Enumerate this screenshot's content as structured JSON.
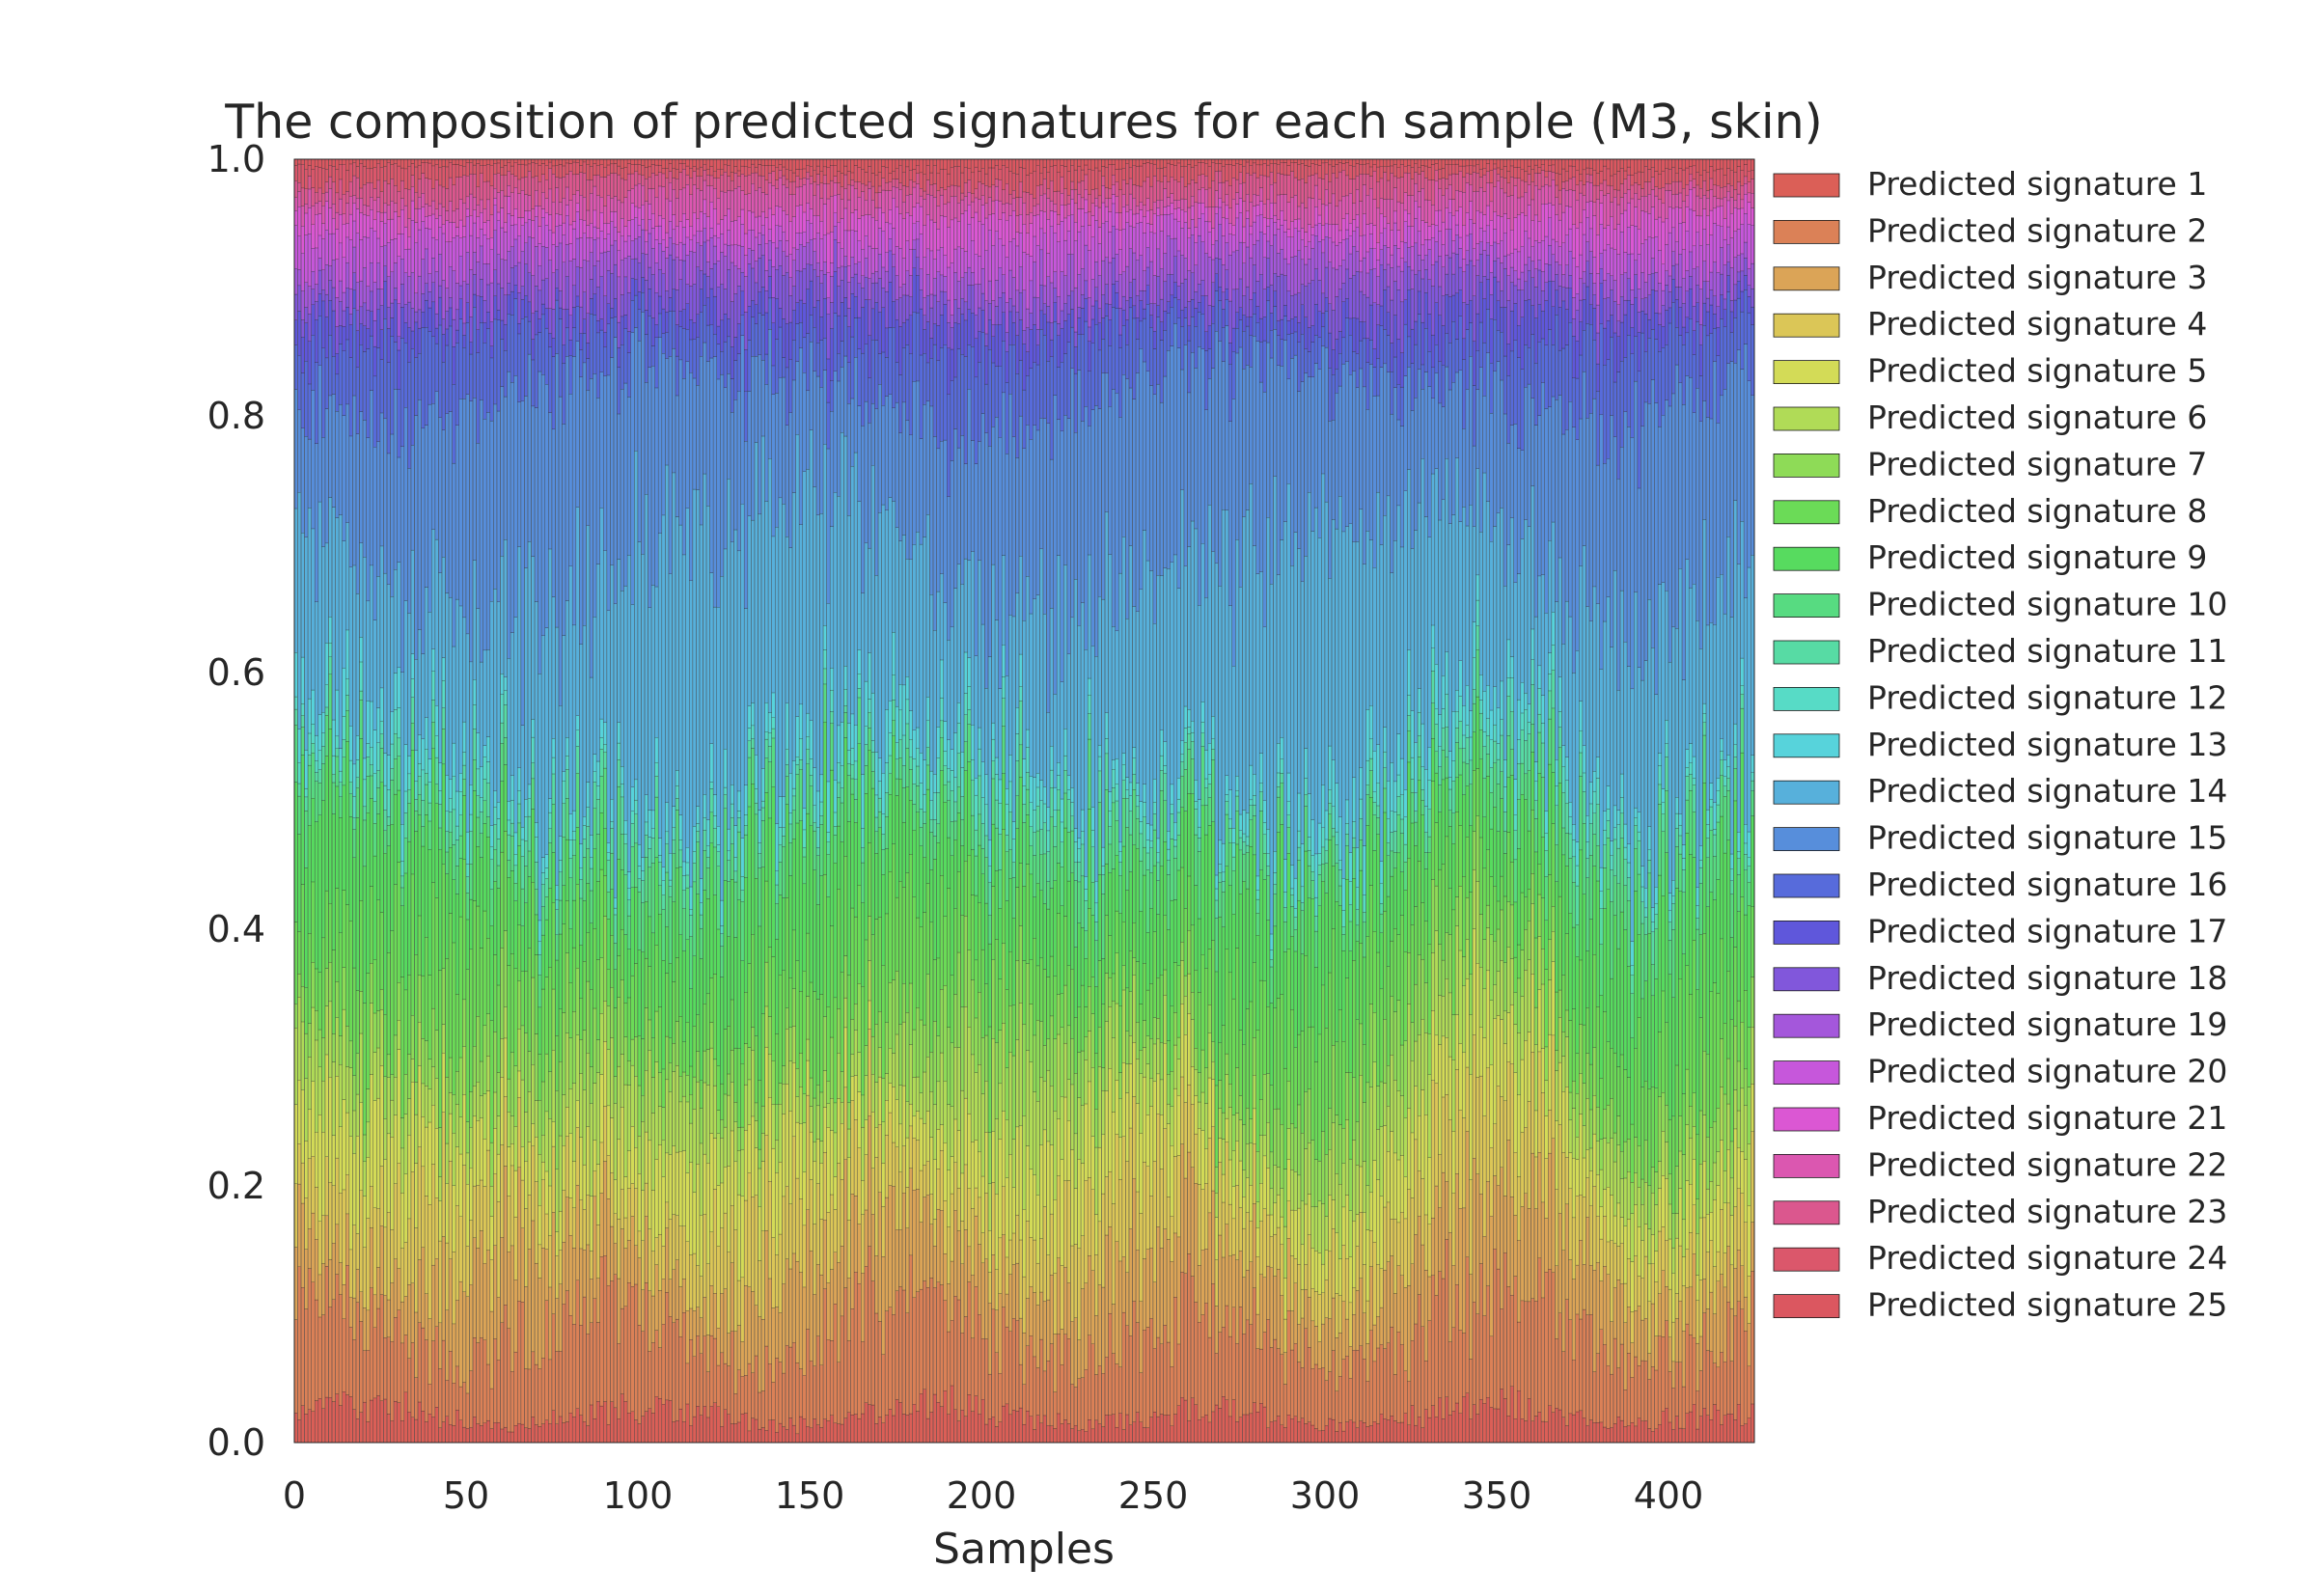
{
  "chart_data": {
    "type": "bar",
    "stacked": true,
    "normalized": true,
    "title": "The composition of predicted signatures for each sample (M3, skin)",
    "xlabel": "Samples",
    "ylabel": "",
    "xlim": [
      0,
      425
    ],
    "ylim": [
      0,
      1.0
    ],
    "x_ticks": [
      "0",
      "50",
      "100",
      "150",
      "200",
      "250",
      "300",
      "350",
      "400"
    ],
    "y_ticks": [
      "0.0",
      "0.2",
      "0.4",
      "0.6",
      "0.8",
      "1.0"
    ],
    "n_samples": 425,
    "legend_position": "outside-right",
    "grid": false,
    "series": [
      {
        "name": "Predicted signature 1",
        "color": "#db5f57",
        "mean_fraction": 0.02
      },
      {
        "name": "Predicted signature 2",
        "color": "#db8157",
        "mean_fraction": 0.065
      },
      {
        "name": "Predicted signature 3",
        "color": "#dba457",
        "mean_fraction": 0.055
      },
      {
        "name": "Predicted signature 4",
        "color": "#dbc657",
        "mean_fraction": 0.05
      },
      {
        "name": "Predicted signature 5",
        "color": "#d3db57",
        "mean_fraction": 0.045
      },
      {
        "name": "Predicted signature 6",
        "color": "#b0db57",
        "mean_fraction": 0.04
      },
      {
        "name": "Predicted signature 7",
        "color": "#8edb57",
        "mean_fraction": 0.035
      },
      {
        "name": "Predicted signature 8",
        "color": "#6bdb57",
        "mean_fraction": 0.06
      },
      {
        "name": "Predicted signature 9",
        "color": "#57db5f",
        "mean_fraction": 0.07
      },
      {
        "name": "Predicted signature 10",
        "color": "#57db81",
        "mean_fraction": 0.03
      },
      {
        "name": "Predicted signature 11",
        "color": "#57dba4",
        "mean_fraction": 0.015
      },
      {
        "name": "Predicted signature 12",
        "color": "#57dbc6",
        "mean_fraction": 0.012
      },
      {
        "name": "Predicted signature 13",
        "color": "#57d3db",
        "mean_fraction": 0.02
      },
      {
        "name": "Predicted signature 14",
        "color": "#57b0db",
        "mean_fraction": 0.16
      },
      {
        "name": "Predicted signature 15",
        "color": "#578edb",
        "mean_fraction": 0.13
      },
      {
        "name": "Predicted signature 16",
        "color": "#576bdb",
        "mean_fraction": 0.04
      },
      {
        "name": "Predicted signature 17",
        "color": "#5f57db",
        "mean_fraction": 0.02
      },
      {
        "name": "Predicted signature 18",
        "color": "#8157db",
        "mean_fraction": 0.02
      },
      {
        "name": "Predicted signature 19",
        "color": "#a457db",
        "mean_fraction": 0.02
      },
      {
        "name": "Predicted signature 20",
        "color": "#c657db",
        "mean_fraction": 0.02
      },
      {
        "name": "Predicted signature 21",
        "color": "#db57d3",
        "mean_fraction": 0.015
      },
      {
        "name": "Predicted signature 22",
        "color": "#db57b0",
        "mean_fraction": 0.015
      },
      {
        "name": "Predicted signature 23",
        "color": "#db578e",
        "mean_fraction": 0.012
      },
      {
        "name": "Predicted signature 24",
        "color": "#db576b",
        "mean_fraction": 0.01
      },
      {
        "name": "Predicted signature 25",
        "color": "#db5760",
        "mean_fraction": 0.006
      }
    ]
  }
}
